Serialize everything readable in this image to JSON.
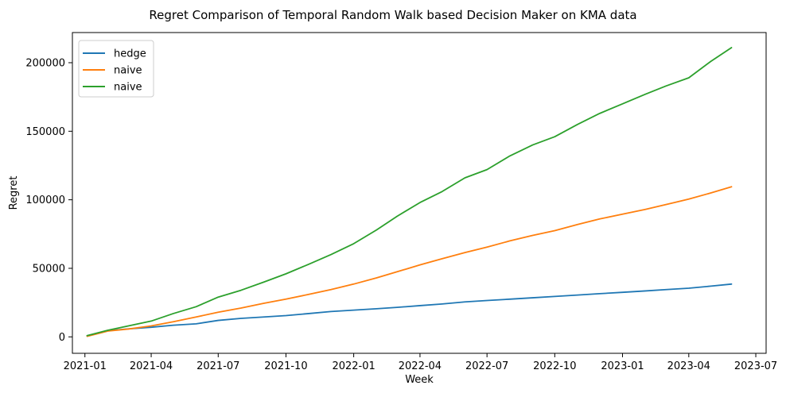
{
  "chart_data": {
    "type": "line",
    "title": "Regret Comparison of Temporal Random Walk based Decision Maker on KMA data",
    "xlabel": "Week",
    "ylabel": "Regret",
    "x_range": [
      "2020-12-15",
      "2023-07-15"
    ],
    "ylim": [
      -12000,
      222000
    ],
    "x_ticks": [
      {
        "date": "2021-01-01",
        "label": "2021-01"
      },
      {
        "date": "2021-04-01",
        "label": "2021-04"
      },
      {
        "date": "2021-07-01",
        "label": "2021-07"
      },
      {
        "date": "2021-10-01",
        "label": "2021-10"
      },
      {
        "date": "2022-01-01",
        "label": "2022-01"
      },
      {
        "date": "2022-04-01",
        "label": "2022-04"
      },
      {
        "date": "2022-07-01",
        "label": "2022-07"
      },
      {
        "date": "2022-10-01",
        "label": "2022-10"
      },
      {
        "date": "2023-01-01",
        "label": "2023-01"
      },
      {
        "date": "2023-04-01",
        "label": "2023-04"
      },
      {
        "date": "2023-07-01",
        "label": "2023-07"
      }
    ],
    "y_ticks": [
      {
        "value": 0,
        "label": "0"
      },
      {
        "value": 50000,
        "label": "50000"
      },
      {
        "value": 100000,
        "label": "100000"
      },
      {
        "value": 150000,
        "label": "150000"
      },
      {
        "value": 200000,
        "label": "200000"
      }
    ],
    "grid": false,
    "legend_position": "top-left",
    "series": [
      {
        "name": "hedge",
        "color": "#1f77b4",
        "points": [
          [
            "2021-01-04",
            800
          ],
          [
            "2021-02-01",
            4500
          ],
          [
            "2021-03-01",
            5800
          ],
          [
            "2021-04-01",
            7000
          ],
          [
            "2021-05-01",
            8500
          ],
          [
            "2021-06-01",
            9500
          ],
          [
            "2021-07-01",
            12000
          ],
          [
            "2021-08-01",
            13500
          ],
          [
            "2021-09-01",
            14500
          ],
          [
            "2021-10-01",
            15500
          ],
          [
            "2021-11-01",
            17000
          ],
          [
            "2021-12-01",
            18500
          ],
          [
            "2022-01-01",
            19500
          ],
          [
            "2022-02-01",
            20500
          ],
          [
            "2022-03-01",
            21500
          ],
          [
            "2022-04-01",
            22800
          ],
          [
            "2022-05-01",
            24000
          ],
          [
            "2022-06-01",
            25500
          ],
          [
            "2022-07-01",
            26500
          ],
          [
            "2022-08-01",
            27500
          ],
          [
            "2022-09-01",
            28500
          ],
          [
            "2022-10-01",
            29500
          ],
          [
            "2022-11-01",
            30500
          ],
          [
            "2022-12-01",
            31500
          ],
          [
            "2023-01-01",
            32500
          ],
          [
            "2023-02-01",
            33500
          ],
          [
            "2023-03-01",
            34500
          ],
          [
            "2023-04-01",
            35500
          ],
          [
            "2023-05-01",
            37000
          ],
          [
            "2023-05-29",
            38500
          ]
        ]
      },
      {
        "name": "naive",
        "color": "#ff7f0e",
        "points": [
          [
            "2021-01-04",
            400
          ],
          [
            "2021-02-01",
            4200
          ],
          [
            "2021-03-01",
            5700
          ],
          [
            "2021-04-01",
            8000
          ],
          [
            "2021-05-01",
            11000
          ],
          [
            "2021-06-01",
            14500
          ],
          [
            "2021-07-01",
            18000
          ],
          [
            "2021-08-01",
            21000
          ],
          [
            "2021-09-01",
            24500
          ],
          [
            "2021-10-01",
            27500
          ],
          [
            "2021-11-01",
            31000
          ],
          [
            "2021-12-01",
            34500
          ],
          [
            "2022-01-01",
            38500
          ],
          [
            "2022-02-01",
            43000
          ],
          [
            "2022-03-01",
            47500
          ],
          [
            "2022-04-01",
            52500
          ],
          [
            "2022-05-01",
            57000
          ],
          [
            "2022-06-01",
            61500
          ],
          [
            "2022-07-01",
            65500
          ],
          [
            "2022-08-01",
            70000
          ],
          [
            "2022-09-01",
            74000
          ],
          [
            "2022-10-01",
            77500
          ],
          [
            "2022-11-01",
            82000
          ],
          [
            "2022-12-01",
            86000
          ],
          [
            "2023-01-01",
            89500
          ],
          [
            "2023-02-01",
            93000
          ],
          [
            "2023-03-01",
            96500
          ],
          [
            "2023-04-01",
            100500
          ],
          [
            "2023-05-01",
            105000
          ],
          [
            "2023-05-29",
            109500
          ]
        ]
      },
      {
        "name": "naive",
        "color": "#2ca02c",
        "points": [
          [
            "2021-01-04",
            900
          ],
          [
            "2021-02-01",
            4800
          ],
          [
            "2021-03-01",
            8000
          ],
          [
            "2021-04-01",
            11500
          ],
          [
            "2021-05-01",
            17000
          ],
          [
            "2021-06-01",
            22000
          ],
          [
            "2021-07-01",
            29000
          ],
          [
            "2021-08-01",
            34000
          ],
          [
            "2021-09-01",
            40000
          ],
          [
            "2021-10-01",
            46000
          ],
          [
            "2021-11-01",
            53000
          ],
          [
            "2021-12-01",
            60000
          ],
          [
            "2022-01-01",
            68000
          ],
          [
            "2022-02-01",
            78000
          ],
          [
            "2022-03-01",
            88000
          ],
          [
            "2022-04-01",
            98000
          ],
          [
            "2022-05-01",
            106000
          ],
          [
            "2022-06-01",
            116000
          ],
          [
            "2022-07-01",
            122000
          ],
          [
            "2022-08-01",
            132000
          ],
          [
            "2022-09-01",
            140000
          ],
          [
            "2022-10-01",
            146000
          ],
          [
            "2022-11-01",
            155000
          ],
          [
            "2022-12-01",
            163000
          ],
          [
            "2023-01-01",
            170000
          ],
          [
            "2023-02-01",
            177000
          ],
          [
            "2023-03-01",
            183000
          ],
          [
            "2023-04-01",
            189000
          ],
          [
            "2023-05-01",
            201000
          ],
          [
            "2023-05-29",
            211000
          ]
        ]
      }
    ]
  }
}
